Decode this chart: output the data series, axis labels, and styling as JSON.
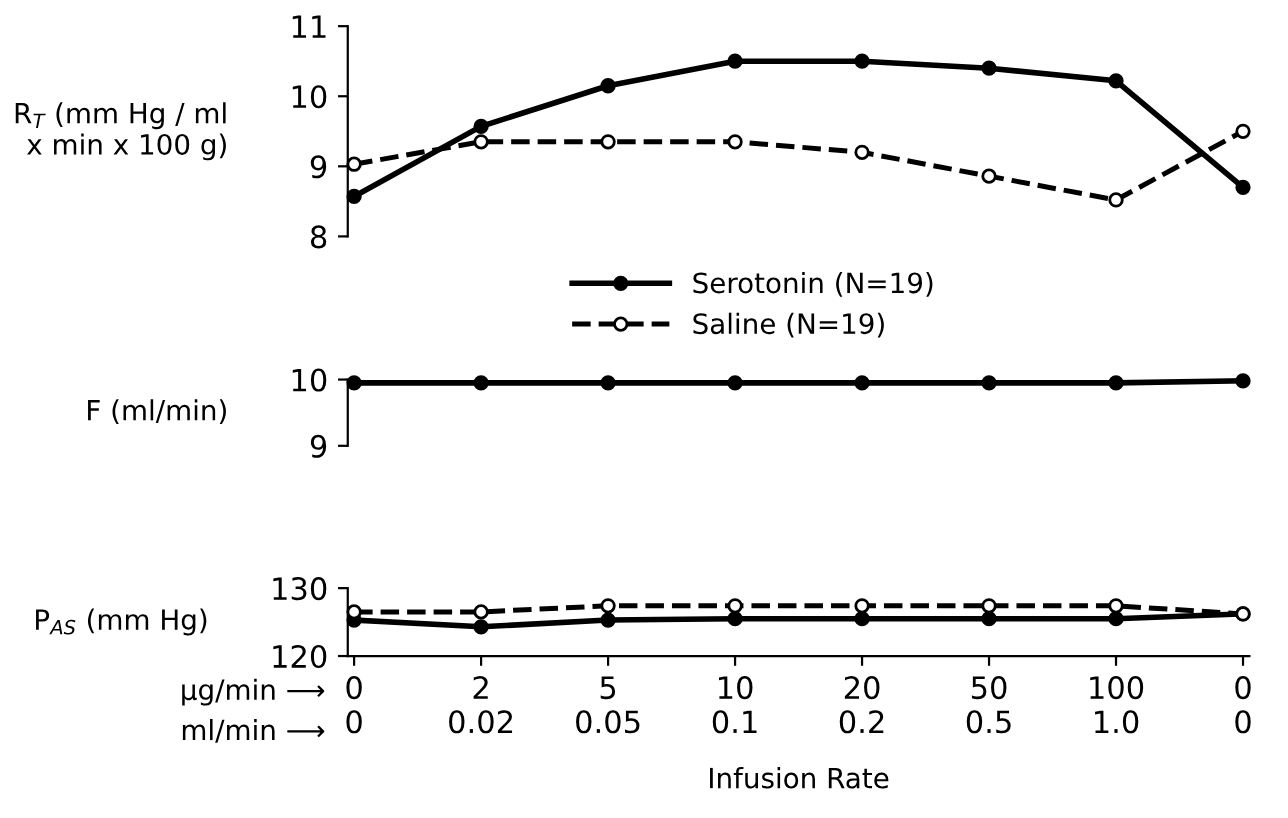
{
  "chart_data": [
    {
      "type": "line",
      "ylabel": "R$_{T}$ (mm Hg / ml\nx min x 100 g)",
      "categories": [
        "0",
        "2",
        "5",
        "10",
        "20",
        "50",
        "100",
        "0"
      ],
      "ylim": [
        8,
        11
      ],
      "yticks": [
        8,
        9,
        10,
        11
      ],
      "tick_labels": "y",
      "legend": "bottom",
      "marker": "circle",
      "series": [
        {
          "name": "Serotonin (N=19)",
          "color": "#000000",
          "line_style": "solid",
          "values": [
            8.57,
            9.57,
            10.15,
            10.5,
            10.5,
            10.4,
            10.22,
            8.7
          ]
        },
        {
          "name": "Saline (N=19)",
          "color": "#000000",
          "line_style": "dashed",
          "values": [
            9.03,
            9.35,
            9.35,
            9.35,
            9.2,
            8.86,
            8.52,
            9.5
          ]
        }
      ]
    },
    {
      "type": "line",
      "ylabel": "F (ml/min)",
      "categories": [
        "0",
        "2",
        "5",
        "10",
        "20",
        "50",
        "100",
        "0"
      ],
      "ylim": [
        9,
        10
      ],
      "yticks": [
        9,
        10
      ],
      "tick_labels": "y",
      "marker": "circle",
      "series": [
        {
          "color": "#000000",
          "line_style": "solid",
          "values": [
            9.95,
            9.95,
            9.95,
            9.95,
            9.95,
            9.95,
            9.95,
            9.98
          ]
        }
      ]
    },
    {
      "type": "line",
      "ylabel": "P$_{AS}$ (mm Hg)",
      "xlabel": "Infusion Rate",
      "categories": [
        "0\n0",
        "2\n0.02",
        "5\n0.05",
        "10\n0.1",
        "20\n0.2",
        "50\n0.5",
        "100\n1.0",
        "0\n0"
      ],
      "ylim": [
        120,
        130
      ],
      "yticks": [
        120,
        130
      ],
      "marker": "circle",
      "annotations": [
        "µg/min ⟶",
        "ml/min ⟶"
      ],
      "series": [
        {
          "color": "#000000",
          "line_style": "solid",
          "values": [
            125.3,
            124.3,
            125.3,
            125.5,
            125.5,
            125.5,
            125.5,
            126.2
          ]
        },
        {
          "color": "#000000",
          "line_style": "dashed",
          "values": [
            126.5,
            126.5,
            127.4,
            127.4,
            127.4,
            127.4,
            127.4,
            126.2
          ]
        }
      ]
    }
  ]
}
